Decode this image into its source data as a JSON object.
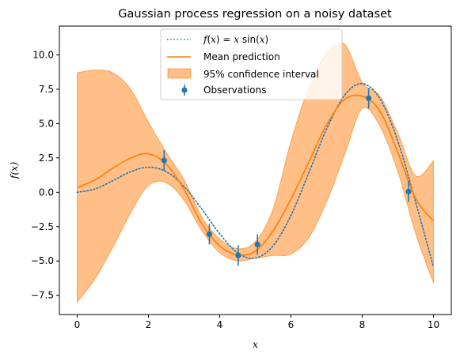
{
  "chart_data": {
    "type": "line",
    "title": "Gaussian process regression on a noisy dataset",
    "xlabel": "x",
    "ylabel": "f(x)",
    "xlim": [
      -0.5,
      10.5
    ],
    "ylim": [
      -8.9,
      12.1
    ],
    "xticks": [
      0,
      2,
      4,
      6,
      8,
      10
    ],
    "yticks": [
      -7.5,
      -5.0,
      -2.5,
      0.0,
      2.5,
      5.0,
      7.5,
      10.0
    ],
    "xtick_labels": [
      "0",
      "2",
      "4",
      "6",
      "8",
      "10"
    ],
    "ytick_labels": [
      "−7.5",
      "−5.0",
      "−2.5",
      "0.0",
      "2.5",
      "5.0",
      "7.5",
      "10.0"
    ],
    "grid": false,
    "legend_position": "top-center",
    "series": [
      {
        "name": "f(x) = x sin(x)",
        "kind": "dotted-line",
        "color": "#1f77b4",
        "x": [
          0,
          0.5,
          1,
          1.5,
          2,
          2.5,
          3,
          3.5,
          4,
          4.5,
          5,
          5.5,
          6,
          6.5,
          7,
          7.5,
          8,
          8.5,
          9,
          9.5,
          10
        ],
        "y": [
          0,
          0.24,
          0.84,
          1.5,
          1.82,
          1.5,
          0.42,
          -1.23,
          -3.03,
          -4.4,
          -4.79,
          -3.89,
          -1.68,
          1.41,
          4.6,
          7.04,
          7.91,
          6.8,
          3.71,
          -0.72,
          -5.44
        ]
      },
      {
        "name": "Mean prediction",
        "kind": "line",
        "color": "#ff7f0e",
        "x": [
          0,
          0.5,
          1,
          1.5,
          2,
          2.5,
          3,
          3.5,
          4,
          4.5,
          5,
          5.5,
          6,
          6.5,
          7,
          7.5,
          8,
          8.5,
          9,
          9.5,
          10
        ],
        "y": [
          0.35,
          0.9,
          1.75,
          2.5,
          2.8,
          2.05,
          0.2,
          -2.3,
          -3.9,
          -4.55,
          -4.3,
          -2.8,
          -0.5,
          2.2,
          4.9,
          6.75,
          7.0,
          5.9,
          2.9,
          -0.45,
          -2.1
        ]
      },
      {
        "name": "95% confidence interval",
        "kind": "band",
        "color": "#ff7f0e",
        "x": [
          0,
          0.5,
          1,
          1.5,
          2,
          2.5,
          3,
          3.5,
          4,
          4.5,
          5,
          5.5,
          6,
          6.5,
          7,
          7.5,
          8,
          8.5,
          9,
          9.5,
          10
        ],
        "lower": [
          -8.0,
          -6.3,
          -4.0,
          -1.5,
          0.5,
          0.7,
          -0.6,
          -2.8,
          -4.4,
          -5.0,
          -4.8,
          -4.6,
          -4.5,
          -3.3,
          -0.7,
          2.7,
          6.1,
          4.8,
          1.5,
          -3.0,
          -6.6
        ],
        "upper": [
          8.7,
          8.9,
          8.7,
          7.5,
          5.1,
          2.9,
          0.9,
          -1.8,
          -3.4,
          -4.1,
          -3.6,
          -1.2,
          3.7,
          7.6,
          10.1,
          10.8,
          8.0,
          7.0,
          4.3,
          1.2,
          2.3
        ]
      },
      {
        "name": "Observations",
        "kind": "errorbar",
        "color": "#1f77b4",
        "x": [
          2.44,
          3.71,
          4.52,
          5.06,
          8.18,
          9.3
        ],
        "y": [
          2.32,
          -3.05,
          -4.6,
          -3.8,
          6.85,
          0.05
        ],
        "yerr": 0.75
      }
    ]
  }
}
